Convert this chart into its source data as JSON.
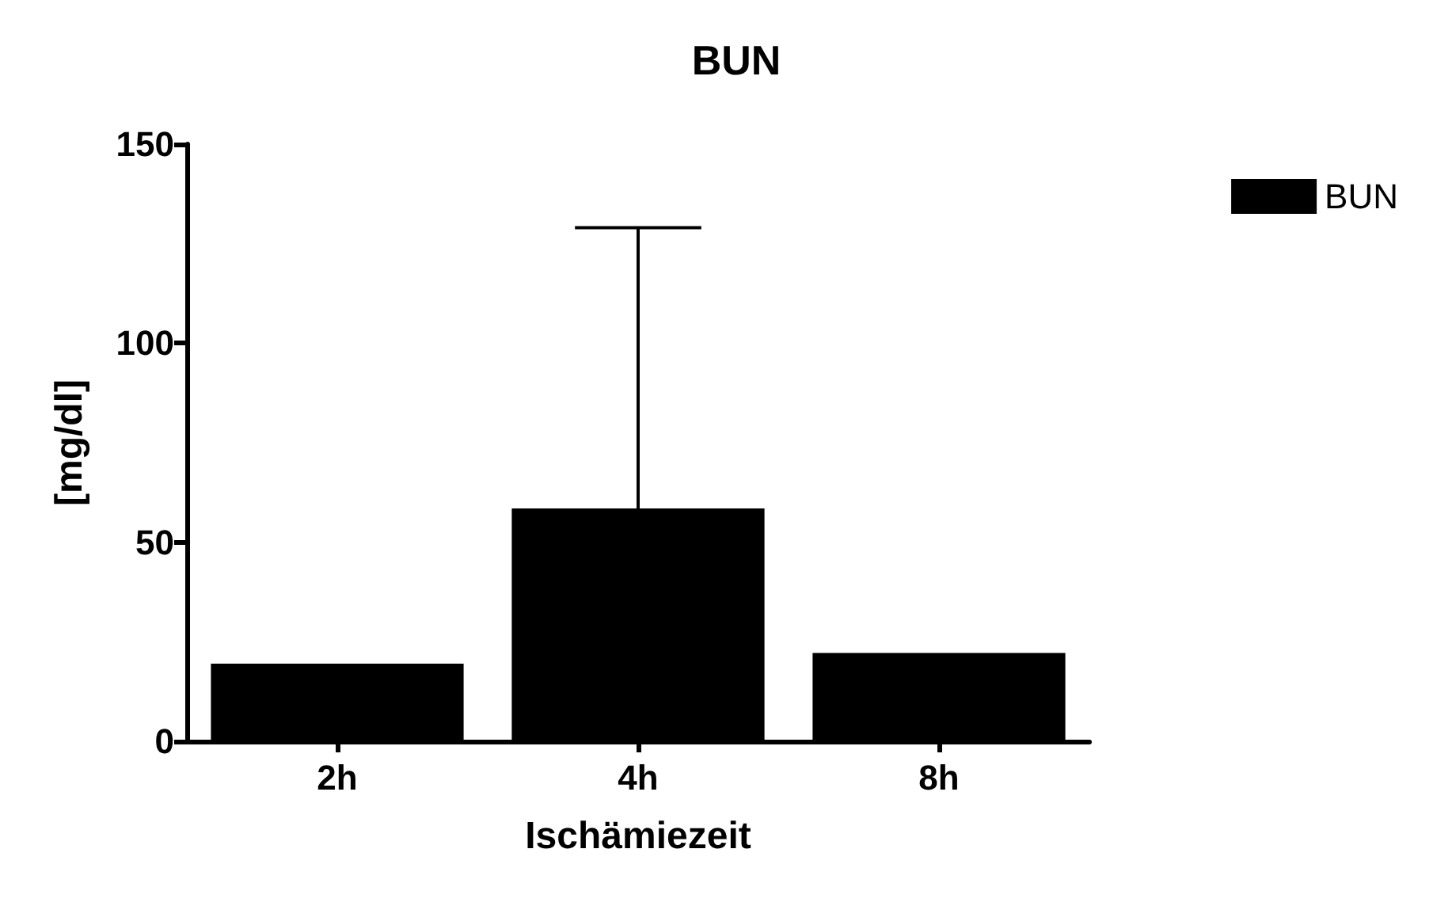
{
  "chart_data": {
    "type": "bar",
    "title": "BUN",
    "xlabel": "Ischämiezeit",
    "ylabel": "[mg/dl]",
    "categories": [
      "2h",
      "4h",
      "8h"
    ],
    "series": [
      {
        "name": "BUN",
        "color": "#000000",
        "values": [
          19.5,
          58.5,
          22.2
        ],
        "errors": [
          null,
          [
            58.5,
            129
          ],
          null
        ]
      }
    ],
    "ylim": [
      0,
      150
    ],
    "yticks": [
      0,
      50,
      100,
      150
    ],
    "grid": false,
    "legend": "top right"
  }
}
